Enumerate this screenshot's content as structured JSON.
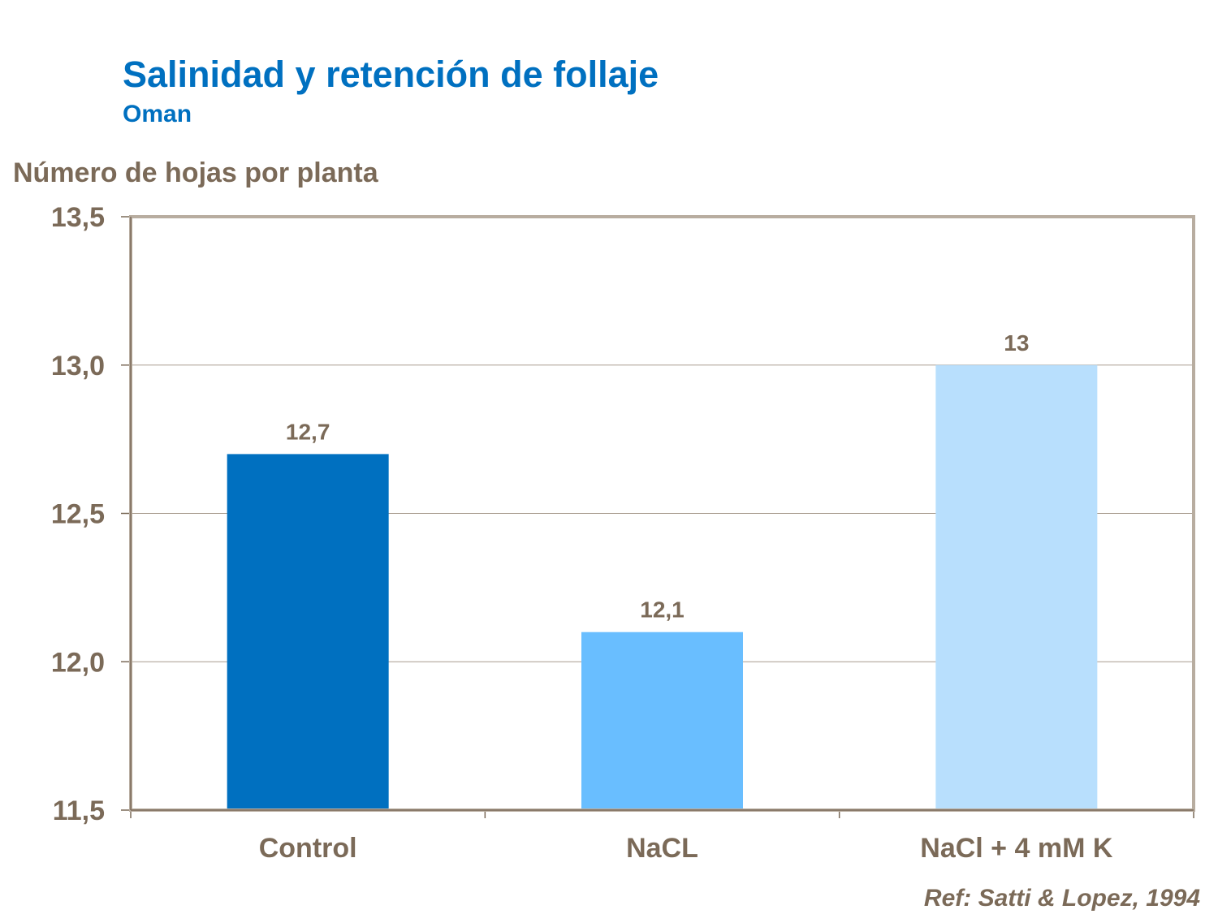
{
  "chart_data": {
    "type": "bar",
    "title": "Salinidad y retención de follaje",
    "subtitle": "Oman",
    "ylabel": "Número de hojas por planta",
    "xlabel": "",
    "categories": [
      "Control",
      "NaCL",
      "NaCl + 4 mM K"
    ],
    "values": [
      12.7,
      12.1,
      13
    ],
    "data_labels": [
      "12,7",
      "12,1",
      "13"
    ],
    "bar_colors": [
      "#0070C0",
      "#69BEFF",
      "#B8DFFD"
    ],
    "ylim": [
      11.5,
      13.5
    ],
    "yticks": [
      11.5,
      12.0,
      12.5,
      13.0,
      13.5
    ],
    "ytick_labels": [
      "11,5",
      "12,0",
      "12,5",
      "13,0",
      "13,5"
    ],
    "grid": true,
    "legend": "none"
  },
  "footer": {
    "reference": "Ref: Satti & Lopez, 1994"
  }
}
